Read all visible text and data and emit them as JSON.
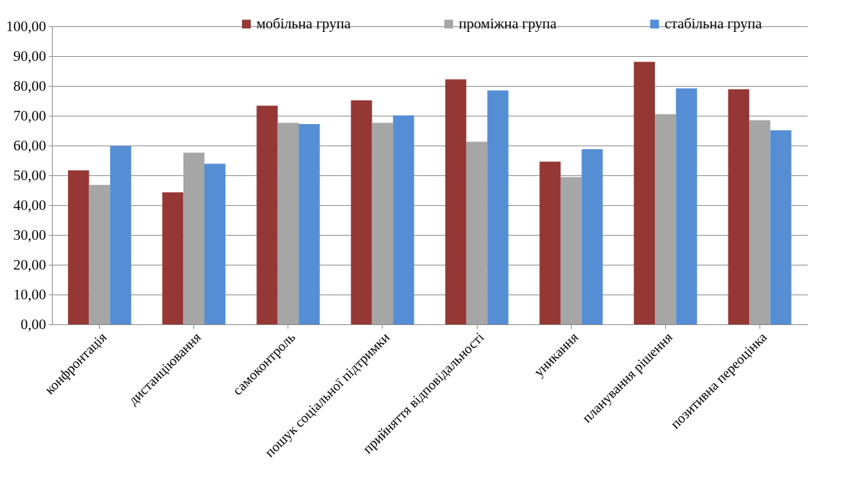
{
  "chart_data": {
    "type": "bar",
    "categories": [
      "конфронтація",
      "дистанціювання",
      "самоконтроль",
      "пошук соціальної підтримки",
      "прийняття відповідальності",
      "уникання",
      "планування рішення",
      "позитивна переоцінка"
    ],
    "series": [
      {
        "name": "мобільна група",
        "color": "#953735",
        "values": [
          51.7,
          44.3,
          73.4,
          75.2,
          82.2,
          54.6,
          88.1,
          78.9
        ]
      },
      {
        "name": "проміжна група",
        "color": "#a6a6a6",
        "values": [
          46.8,
          57.6,
          67.6,
          67.6,
          61.3,
          49.4,
          70.5,
          68.5
        ]
      },
      {
        "name": "стабільна група",
        "color": "#558ed5",
        "values": [
          59.9,
          53.9,
          67.2,
          70.1,
          78.5,
          58.8,
          79.2,
          65.1
        ]
      }
    ],
    "ylim": [
      0,
      100
    ],
    "yticks": [
      {
        "value": 0,
        "label": "0,00"
      },
      {
        "value": 10,
        "label": "10,00"
      },
      {
        "value": 20,
        "label": "20,00"
      },
      {
        "value": 30,
        "label": "30,00"
      },
      {
        "value": 40,
        "label": "40,00"
      },
      {
        "value": 50,
        "label": "50,00"
      },
      {
        "value": 60,
        "label": "60,00"
      },
      {
        "value": 70,
        "label": "70,00"
      },
      {
        "value": 80,
        "label": "80,00"
      },
      {
        "value": 90,
        "label": "90,00"
      },
      {
        "value": 100,
        "label": "100,00"
      }
    ],
    "grid": "y",
    "legend": "top"
  }
}
